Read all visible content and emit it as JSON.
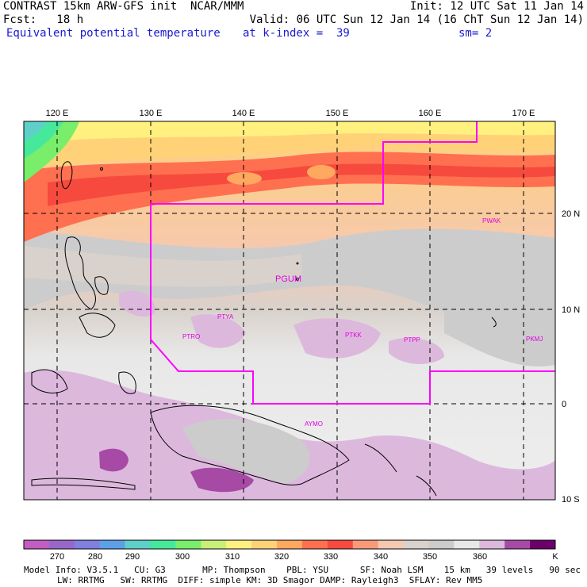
{
  "header": {
    "line1_left": "CONTRAST 15km ARW-GFS init  NCAR/MMM",
    "line1_right": "Init: 12 UTC Sat 11 Jan 14",
    "fcst": "Fcst:   18 h",
    "valid": "Valid: 06 UTC Sun 12 Jan 14 (16 ChT Sun 12 Jan 14)",
    "field": "Equivalent potential temperature",
    "level": "at k-index =  39",
    "smooth": "sm= 2"
  },
  "map": {
    "lon_labels": [
      "120 E",
      "130 E",
      "140 E",
      "150 E",
      "160 E",
      "170 E"
    ],
    "lat_labels": [
      "20 N",
      "10 N",
      "0",
      "10 S"
    ],
    "stations": [
      "PGUM",
      "PTYA",
      "PTRO",
      "PTKK",
      "PTPP",
      "PKMJ",
      "PWAK",
      "AYMO"
    ]
  },
  "colorbar": {
    "ticks": [
      "270",
      "280",
      "290",
      "300",
      "310",
      "320",
      "330",
      "340",
      "350",
      "360"
    ],
    "unit": "K",
    "colors": [
      "#c25ec2",
      "#9966cc",
      "#8080e0",
      "#5ea0e8",
      "#5fd0c8",
      "#46e89c",
      "#78ee6a",
      "#c8f078",
      "#fff080",
      "#ffd278",
      "#ffa860",
      "#ff7050",
      "#f74a3e",
      "#f89a7a",
      "#f6c8b0",
      "#d9d2cc",
      "#cccccc",
      "#e8e8e8",
      "#ddb8dd",
      "#a64aa6",
      "#6b006b"
    ]
  },
  "footer": {
    "line1": "Model Info: V3.5.1   CU: G3       MP: Thompson    PBL: YSU      SF: Noah LSM    15 km   39 levels   90 sec",
    "line2": "LW: RRTMG   SW: RRTMG  DIFF: simple KM: 3D Smagor DAMP: Rayleigh3  SFLAY: Rev MM5"
  }
}
